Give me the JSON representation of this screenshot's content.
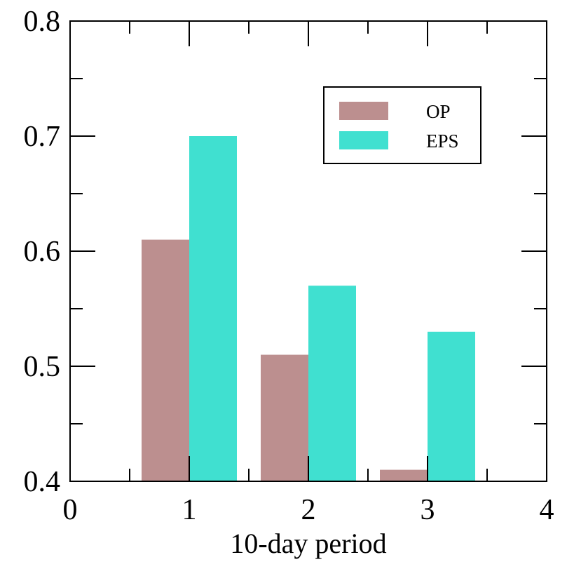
{
  "chart_data": {
    "type": "bar",
    "title": "",
    "xlabel": "10-day period",
    "ylabel": "",
    "xlim": [
      0,
      4
    ],
    "ylim": [
      0.4,
      0.8
    ],
    "x_ticks": [
      "0",
      "1",
      "2",
      "3",
      "4"
    ],
    "y_ticks": [
      "0.4",
      "0.5",
      "0.6",
      "0.7",
      "0.8"
    ],
    "categories": [
      1,
      2,
      3
    ],
    "series": [
      {
        "name": "OP",
        "color": "#bc8f8f",
        "values": [
          0.61,
          0.51,
          0.41
        ]
      },
      {
        "name": "EPS",
        "color": "#40e0d0",
        "values": [
          0.7,
          0.57,
          0.53
        ]
      }
    ],
    "grid": false,
    "legend_position": "top-right"
  }
}
